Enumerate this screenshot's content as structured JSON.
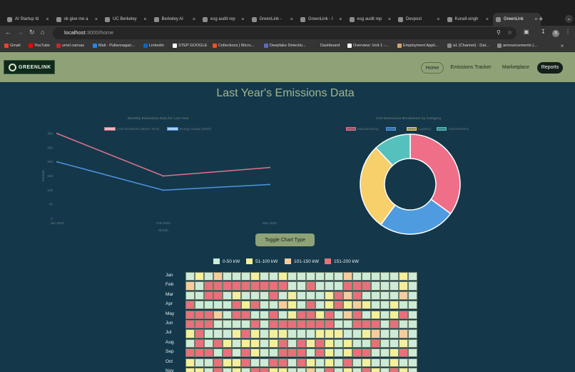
{
  "browser": {
    "tabs": [
      {
        "title": "AI Startup Id"
      },
      {
        "title": "ok give me a"
      },
      {
        "title": "UC Berkeley"
      },
      {
        "title": "Berkeley AI"
      },
      {
        "title": "esg audit rep"
      },
      {
        "title": "GreenLink -"
      },
      {
        "title": "GreenLink - I"
      },
      {
        "title": "esg audit rep"
      },
      {
        "title": "Devpost"
      },
      {
        "title": "Kunall-singh"
      },
      {
        "title": "GreenLink"
      }
    ],
    "active_tab": 10,
    "new_tab_glyph": "+",
    "url_host": "localhost",
    "url_path": ":3000/home",
    "profile_initial": "S",
    "bookmarks": [
      {
        "label": "Gmail",
        "color": "#ea4335"
      },
      {
        "label": "YouTube",
        "color": "#ff0000"
      },
      {
        "label": "umsl canvas",
        "color": "#c62828"
      },
      {
        "label": "Mail - Pullannagari...",
        "color": "#1e88e5"
      },
      {
        "label": "Linkedin",
        "color": "#0a66c2"
      },
      {
        "label": "STEP GOOGLE",
        "color": "#ffffff"
      },
      {
        "label": "Collections | Micro...",
        "color": "#f25022"
      },
      {
        "label": "Deepfake Detectio...",
        "color": "#5c6bc0"
      },
      {
        "label": "Dashboard",
        "color": "#333333"
      },
      {
        "label": "Overview: Unit 1 -...",
        "color": "#ffffff"
      },
      {
        "label": "Employment Appli...",
        "color": "#d4a373"
      },
      {
        "label": "a1 (Channel) - Dat...",
        "color": "#888888"
      },
      {
        "label": "announcements (...",
        "color": "#888888"
      }
    ]
  },
  "app": {
    "brand": "GREENLINK",
    "nav": {
      "home": "Home",
      "tracker": "Emissions Tracker",
      "marketplace": "Marketplace",
      "reports": "Reports"
    },
    "page_title": "Last Year's Emissions Data",
    "toggle_button": "Toggle Chart Type"
  },
  "chart_data": [
    {
      "type": "line",
      "title": "Monthly Emissions Data for Last Year",
      "x": [
        "Jan 2023",
        "Feb 2023",
        "Mar 2023"
      ],
      "xlabel": "Month",
      "ylabel": "Amount",
      "ylim": [
        0,
        300
      ],
      "yticks": [
        0,
        50,
        100,
        150,
        200,
        250,
        300
      ],
      "grid": false,
      "legend": "top",
      "series": [
        {
          "name": "CO2 Emissions (Metric Tons)",
          "values": [
            300,
            150,
            180
          ],
          "color": "#e0718a"
        },
        {
          "name": "Energy Usage (MWh)",
          "values": [
            200,
            100,
            120
          ],
          "color": "#4d94e0"
        }
      ]
    },
    {
      "type": "pie",
      "title": "CO2 Emissions Breakdown by Category",
      "donut": true,
      "legend": "top",
      "categories": [
        "Manufacturing",
        "",
        "Logistics",
        "Administration"
      ],
      "values": [
        35,
        25,
        28,
        12
      ],
      "colors": [
        "#ef6f89",
        "#4e9be0",
        "#f7cf6b",
        "#56c0bd"
      ]
    }
  ],
  "heatmap": {
    "legend": [
      {
        "label": "0-50 kW",
        "color": "#cdebd6"
      },
      {
        "label": "51-100 kW",
        "color": "#f4ef9a"
      },
      {
        "label": "101-150 kW",
        "color": "#f6cc9d"
      },
      {
        "label": "151-200 kW",
        "color": "#e8707a"
      }
    ],
    "months": [
      "Jan",
      "Feb",
      "Mar",
      "Apr",
      "May",
      "Jun",
      "Jul",
      "Aug",
      "Sep",
      "Oct",
      "Nov"
    ],
    "columns": 25,
    "levels": [
      "1213111211211111131111121",
      "3144444444411411144411121",
      "1144121114121112434111131",
      "4111142411321412423211211",
      "4443144114124424134121241",
      "4441111414444444114441411",
      "2411124212211122211231131",
      "1414212212414242121141121",
      "4441414211444142124411241",
      "2114224114414212141211211",
      "2214121442211314121421421"
    ]
  }
}
